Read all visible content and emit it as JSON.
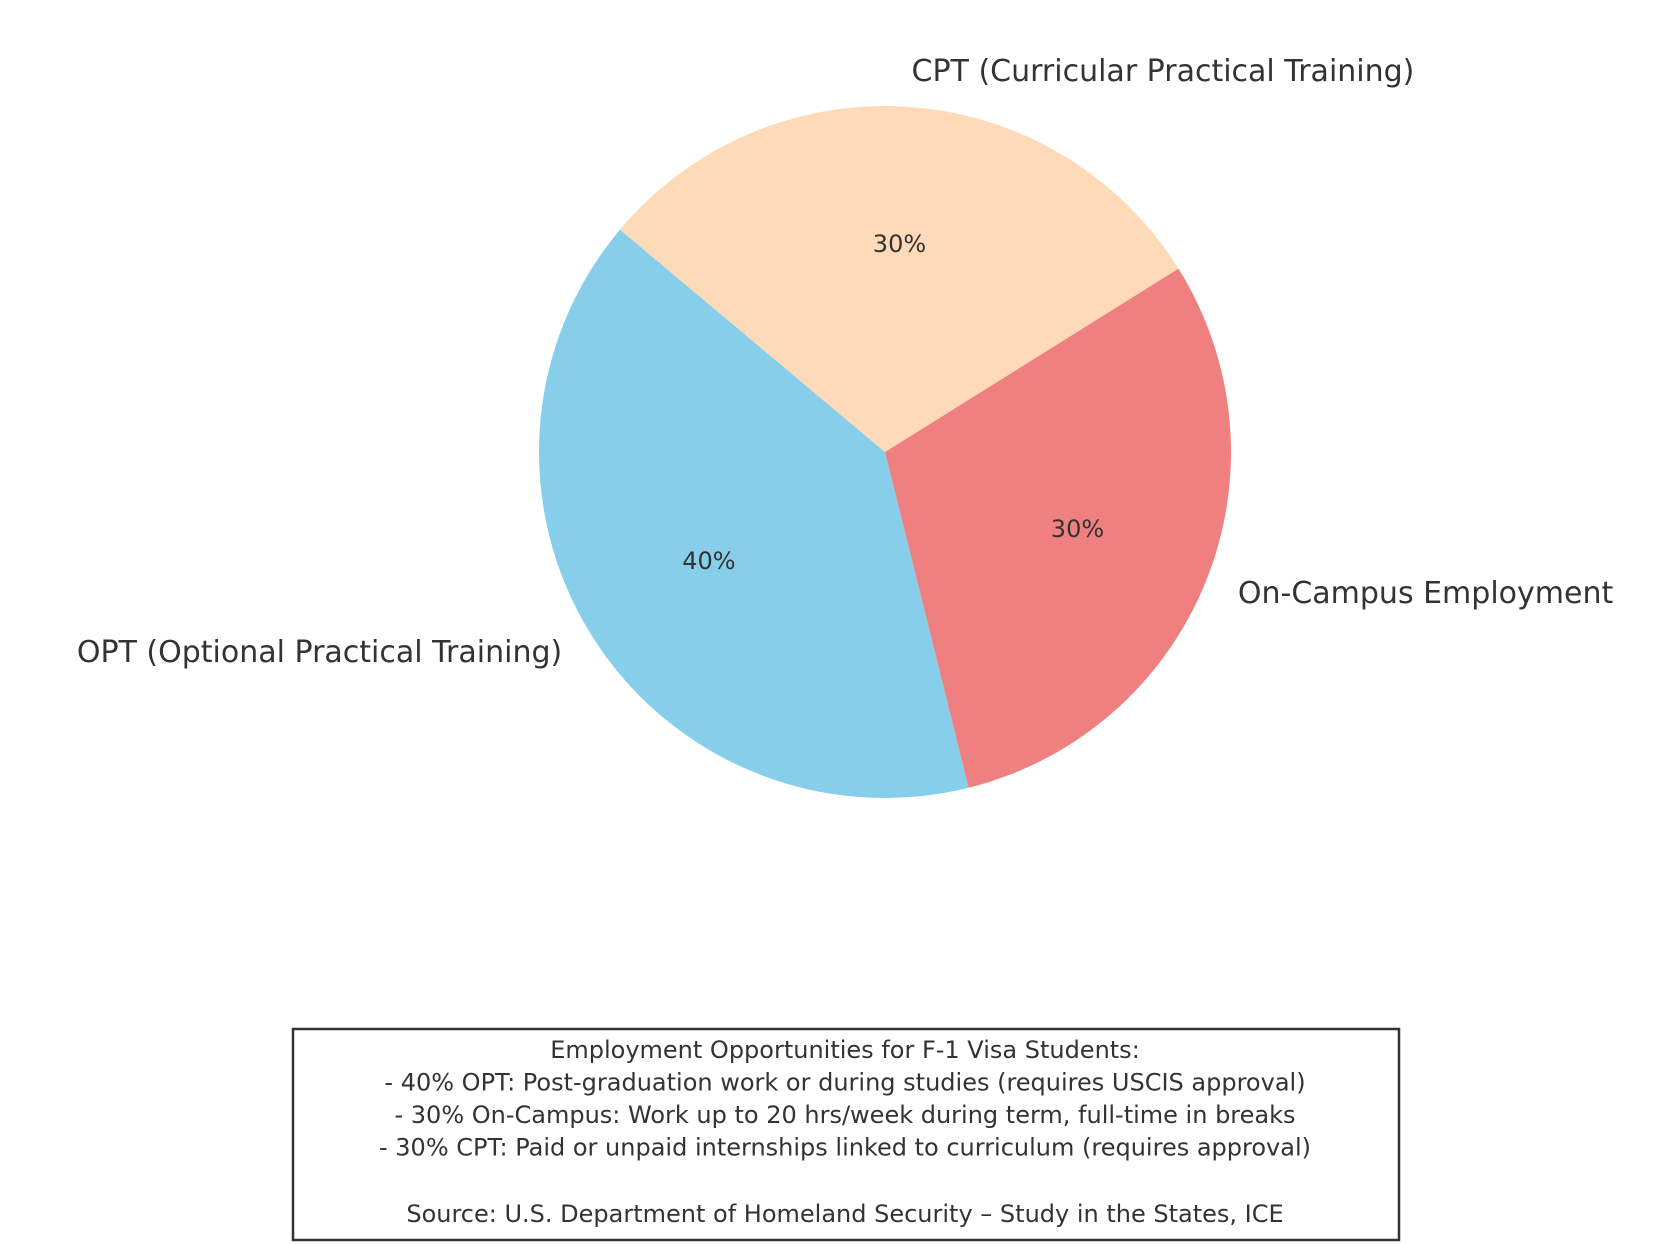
{
  "chart_data": {
    "type": "pie",
    "categories": [
      "OPT (Optional Practical Training)",
      "On-Campus Employment",
      "CPT (Curricular Practical Training)"
    ],
    "values": [
      40,
      30,
      30
    ],
    "value_labels": [
      "40%",
      "30%",
      "30%"
    ],
    "colors": [
      "#87CEEB",
      "#F08080",
      "#FFDAB9"
    ],
    "annotation": {
      "lines": [
        "Employment Opportunities for F-1 Visa Students:",
        "- 40% OPT: Post-graduation work or during studies (requires USCIS approval)",
        "- 30% On-Campus: Work up to 20 hrs/week during term, full-time in breaks",
        "- 30% CPT: Paid or unpaid internships linked to curriculum (requires approval)"
      ],
      "source": "Source: U.S. Department of Homeland Security – Study in the States, ICE"
    }
  }
}
